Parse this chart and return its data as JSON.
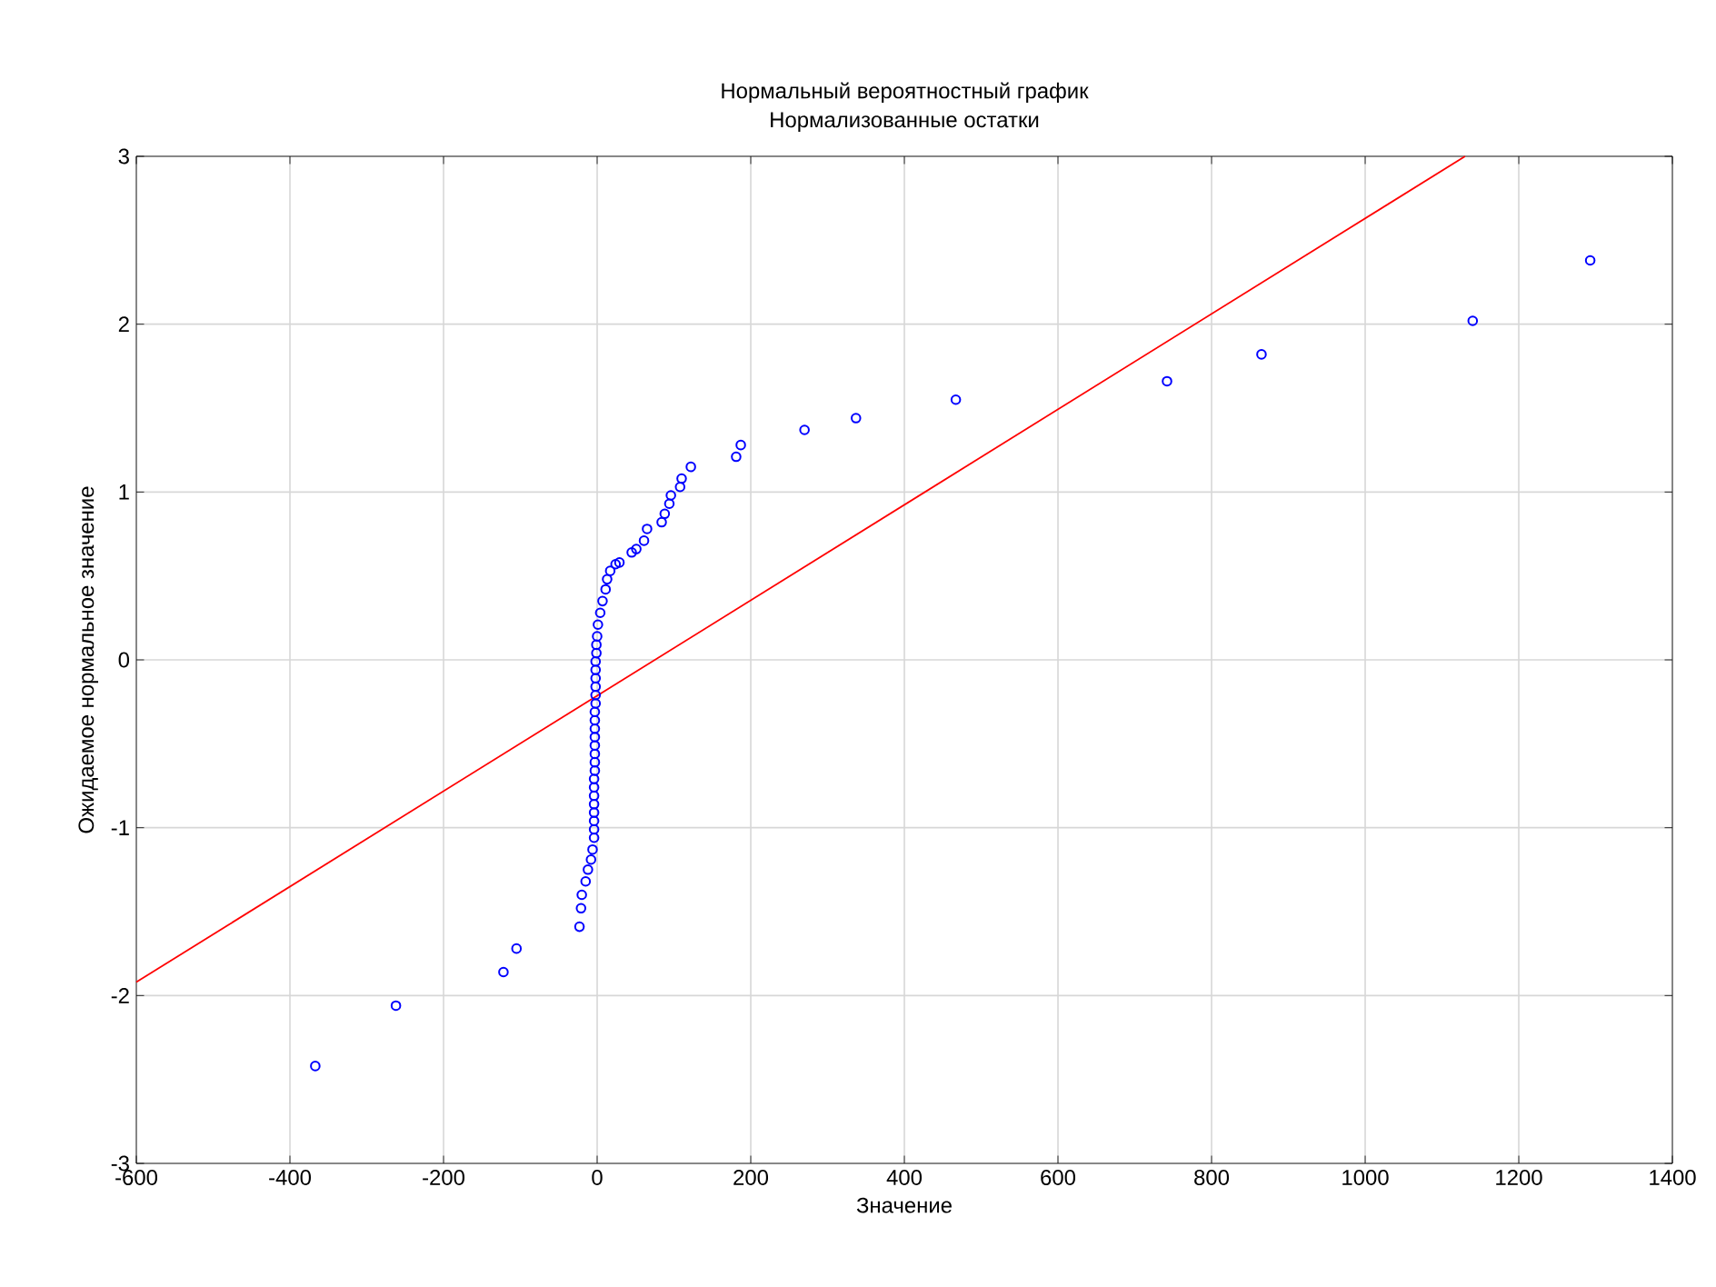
{
  "chart_data": {
    "type": "scatter",
    "title": "Нормальный вероятностный график",
    "subtitle": "Нормализованные остатки",
    "xlabel": "Значение",
    "ylabel": "Ожидаемое нормальное значение",
    "xlim": [
      -600,
      1400
    ],
    "ylim": [
      -3,
      3
    ],
    "xticks": [
      -600,
      -400,
      -200,
      0,
      200,
      400,
      600,
      800,
      1000,
      1200,
      1400
    ],
    "yticks": [
      -3,
      -2,
      -1,
      0,
      1,
      2,
      3
    ],
    "grid": true,
    "marker": "circle",
    "series": [
      {
        "color": "#0000ff",
        "x": [
          -367,
          -262,
          -122,
          -105,
          -23,
          -21,
          -20,
          -15,
          -12,
          -8,
          -6,
          -4,
          -4,
          -4,
          -4,
          -4,
          -4,
          -4,
          -4,
          -3,
          -3,
          -3,
          -3,
          -3,
          -3,
          -3,
          -3,
          -2,
          -2,
          -2,
          -2,
          -2,
          -2,
          -1,
          -1,
          0,
          1,
          4,
          7,
          11,
          13,
          17,
          24,
          29,
          45,
          51,
          61,
          65,
          84,
          88,
          94,
          96,
          108,
          110,
          122,
          181,
          187,
          270,
          337,
          467,
          742,
          865,
          1140,
          1293
        ],
        "values": [
          -2.42,
          -2.06,
          -1.86,
          -1.72,
          -1.59,
          -1.48,
          -1.4,
          -1.32,
          -1.25,
          -1.19,
          -1.13,
          -1.06,
          -1.01,
          -0.96,
          -0.91,
          -0.86,
          -0.81,
          -0.76,
          -0.71,
          -0.66,
          -0.61,
          -0.56,
          -0.51,
          -0.46,
          -0.41,
          -0.36,
          -0.31,
          -0.26,
          -0.21,
          -0.16,
          -0.11,
          -0.06,
          -0.01,
          0.04,
          0.09,
          0.14,
          0.21,
          0.28,
          0.35,
          0.42,
          0.48,
          0.53,
          0.57,
          0.58,
          0.64,
          0.66,
          0.71,
          0.78,
          0.82,
          0.87,
          0.93,
          0.98,
          1.03,
          1.08,
          1.15,
          1.21,
          1.28,
          1.37,
          1.44,
          1.55,
          1.66,
          1.82,
          2.02,
          2.38
        ]
      },
      {
        "type": "line",
        "color": "#ff0000",
        "marker": "none",
        "x": [
          -600,
          1130
        ],
        "values": [
          -1.92,
          3
        ]
      }
    ]
  }
}
